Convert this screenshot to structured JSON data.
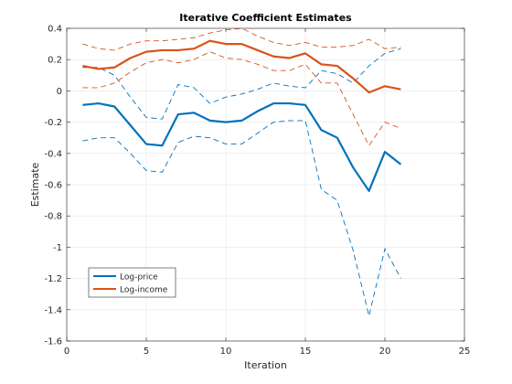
{
  "chart_data": {
    "type": "line",
    "title": "Iterative Coefficient Estimates",
    "xlabel": "Iteration",
    "ylabel": "Estimate",
    "xlim": [
      0,
      25
    ],
    "ylim": [
      -1.6,
      0.4
    ],
    "xticks": [
      0,
      5,
      10,
      15,
      20,
      25
    ],
    "yticks": [
      -1.6,
      -1.4,
      -1.2,
      -1,
      -0.8,
      -0.6,
      -0.4,
      -0.2,
      0,
      0.2,
      0.4
    ],
    "xtick_labels": [
      "0",
      "5",
      "10",
      "15",
      "20",
      "25"
    ],
    "ytick_labels": [
      "-1.6",
      "-1.4",
      "-1.2",
      "-1",
      "-0.8",
      "-0.6",
      "-0.4",
      "-0.2",
      "0",
      "0.2",
      "0.4"
    ],
    "grid": true,
    "legend_position": "bottom-left",
    "x": [
      1,
      2,
      3,
      4,
      5,
      6,
      7,
      8,
      9,
      10,
      11,
      12,
      13,
      14,
      15,
      16,
      17,
      18,
      19,
      20,
      21
    ],
    "series": [
      {
        "name": "Log-price",
        "color": "#0072BD",
        "values": [
          -0.09,
          -0.08,
          -0.1,
          -0.22,
          -0.34,
          -0.35,
          -0.15,
          -0.14,
          -0.19,
          -0.2,
          -0.19,
          -0.13,
          -0.08,
          -0.08,
          -0.09,
          -0.25,
          -0.3,
          -0.49,
          -0.64,
          -0.39,
          -0.47
        ],
        "lower": [
          -0.32,
          -0.3,
          -0.3,
          -0.4,
          -0.51,
          -0.52,
          -0.33,
          -0.29,
          -0.3,
          -0.34,
          -0.34,
          -0.27,
          -0.2,
          -0.19,
          -0.19,
          -0.63,
          -0.7,
          -1.02,
          -1.44,
          -1.01,
          -1.2
        ],
        "upper": [
          0.15,
          0.15,
          0.1,
          -0.04,
          -0.17,
          -0.18,
          0.04,
          0.02,
          -0.08,
          -0.04,
          -0.02,
          0.01,
          0.05,
          0.03,
          0.02,
          0.13,
          0.11,
          0.05,
          0.16,
          0.24,
          0.27
        ]
      },
      {
        "name": "Log-income",
        "color": "#D95319",
        "values": [
          0.16,
          0.14,
          0.15,
          0.21,
          0.25,
          0.26,
          0.26,
          0.27,
          0.32,
          0.3,
          0.3,
          0.26,
          0.22,
          0.21,
          0.24,
          0.17,
          0.16,
          0.08,
          -0.01,
          0.03,
          0.01
        ],
        "lower": [
          0.02,
          0.02,
          0.05,
          0.12,
          0.18,
          0.2,
          0.18,
          0.2,
          0.25,
          0.21,
          0.2,
          0.17,
          0.13,
          0.13,
          0.17,
          0.05,
          0.05,
          -0.15,
          -0.35,
          -0.2,
          -0.24
        ],
        "upper": [
          0.3,
          0.27,
          0.26,
          0.3,
          0.32,
          0.32,
          0.33,
          0.34,
          0.37,
          0.39,
          0.4,
          0.35,
          0.31,
          0.29,
          0.31,
          0.28,
          0.28,
          0.29,
          0.33,
          0.27,
          0.28
        ]
      }
    ]
  }
}
